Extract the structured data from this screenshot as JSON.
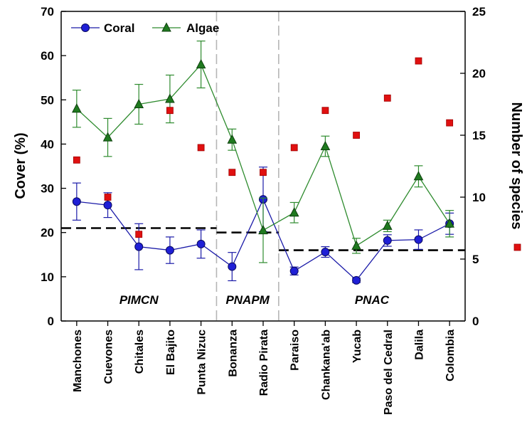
{
  "chart_data": {
    "type": "line",
    "ylabel": "Cover (%)",
    "y2label": "Number of species",
    "ylim": [
      0,
      70
    ],
    "y2lim": [
      0,
      25
    ],
    "yticks": [
      0,
      10,
      20,
      30,
      40,
      50,
      60,
      70
    ],
    "y2ticks": [
      0,
      5,
      10,
      15,
      20,
      25
    ],
    "categories": [
      "Manchones",
      "Cuevones",
      "Chitales",
      "El Bajito",
      "Punta Nizuc",
      "Bonanza",
      "Radio Pirata",
      "Paraiso",
      "Chankana'ab",
      "Yucab",
      "Paso del Cedral",
      "Dalila",
      "Colombia"
    ],
    "series": [
      {
        "name": "Coral",
        "axis": "left",
        "color": "#1a1aa8",
        "marker": "circle",
        "marker_color": "#1f1fd6",
        "values": [
          27,
          26.2,
          16.8,
          16,
          17.4,
          12.3,
          27.5,
          11.3,
          15.6,
          9.2,
          18.2,
          18.4,
          22
        ],
        "error": [
          4.2,
          2.8,
          5.2,
          3,
          3.2,
          3.2,
          7.3,
          0.9,
          1.2,
          0.5,
          1.3,
          2.2,
          2.4
        ]
      },
      {
        "name": "Algae",
        "axis": "left",
        "color": "#2e8b2e",
        "marker": "triangle",
        "marker_color": "#1f7a1f",
        "values": [
          48,
          41.5,
          49,
          50.2,
          58,
          41,
          20.5,
          24.5,
          39.5,
          17,
          21.5,
          32.7,
          22
        ],
        "error": [
          4.2,
          4.3,
          4.5,
          5.4,
          5.3,
          2.4,
          7.3,
          2.3,
          2.3,
          1.7,
          1.3,
          2.4,
          3
        ]
      },
      {
        "name": "",
        "axis": "right",
        "color": "#e01010",
        "marker": "square",
        "values": [
          13,
          10,
          7,
          17,
          14,
          12,
          12,
          14,
          17,
          15,
          18,
          21,
          16
        ]
      }
    ],
    "region_averages": [
      {
        "label": "PIMCN",
        "from": 0,
        "to": 4,
        "value": 21
      },
      {
        "label": "PNAPM",
        "from": 5,
        "to": 6,
        "value": 20
      },
      {
        "label": "PNAC",
        "from": 7,
        "to": 12,
        "value": 16
      }
    ],
    "region_dividers_after": [
      4,
      6
    ],
    "legend": {
      "position": "top-left",
      "entries": [
        "Coral",
        "Algae"
      ]
    },
    "side_legend_marker": "square",
    "grid": false
  }
}
